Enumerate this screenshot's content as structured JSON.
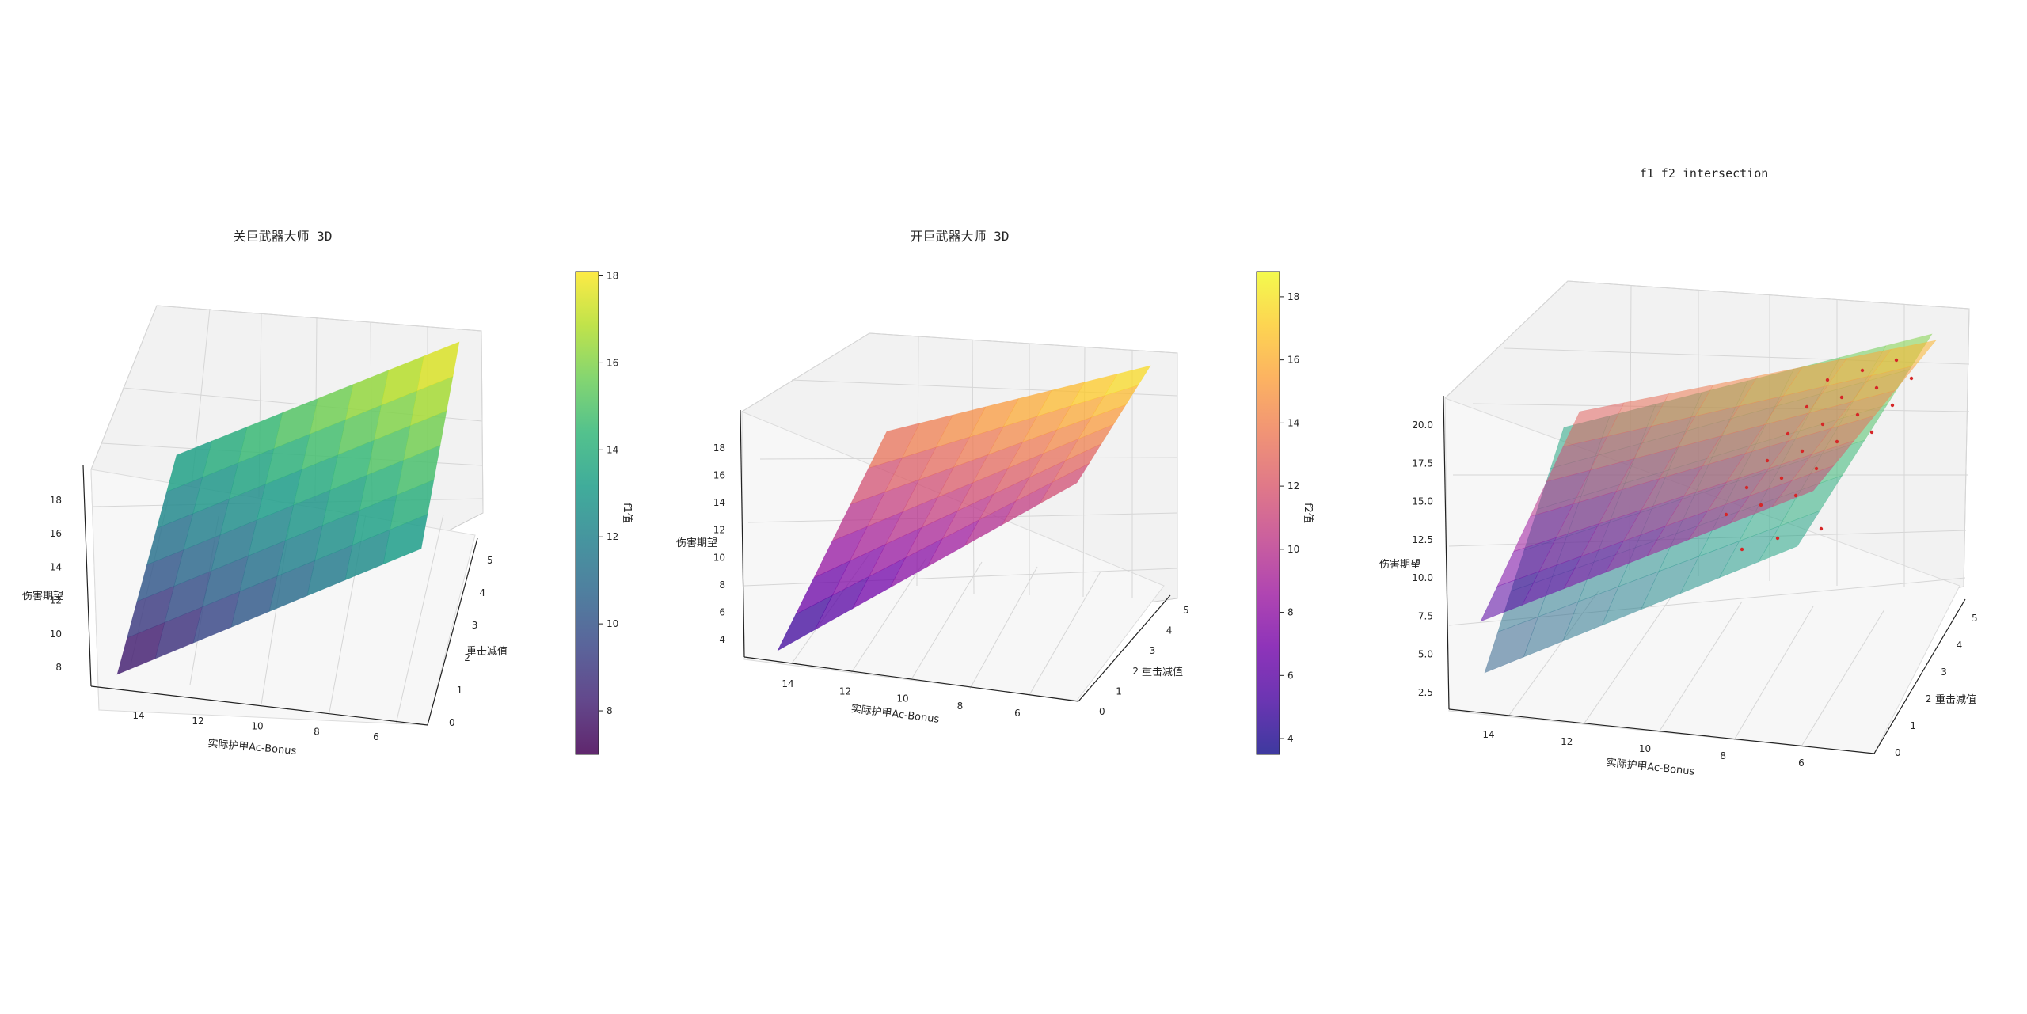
{
  "chart_data": [
    {
      "type": "surface",
      "title": "关巨武器大师 3D",
      "xlabel": "实际护甲Ac-Bonus",
      "ylabel": "重击减值",
      "zlabel": "伤害期望",
      "x_ticks": [
        "14",
        "12",
        "10",
        "8",
        "6"
      ],
      "y_ticks": [
        "0",
        "1",
        "2",
        "3",
        "4",
        "5"
      ],
      "z_ticks": [
        "8",
        "10",
        "12",
        "14",
        "16",
        "18"
      ],
      "xlim": [
        15,
        5
      ],
      "ylim": [
        0,
        5
      ],
      "zlim": [
        7,
        18
      ],
      "colormap": "viridis",
      "colorbar": {
        "label": "f1值",
        "ticks": [
          "8",
          "10",
          "12",
          "14",
          "16",
          "18"
        ],
        "range": [
          7,
          18.1
        ]
      },
      "corner_values": [
        {
          "x": 15,
          "y": 0,
          "z": 7.2
        },
        {
          "x": 5,
          "y": 0,
          "z": 13.0
        },
        {
          "x": 15,
          "y": 5,
          "z": 13.5
        },
        {
          "x": 5,
          "y": 5,
          "z": 18.1
        }
      ]
    },
    {
      "type": "surface",
      "title": "开巨武器大师 3D",
      "xlabel": "实际护甲Ac-Bonus",
      "ylabel": "重击减值",
      "zlabel": "伤害期望",
      "x_ticks": [
        "14",
        "12",
        "10",
        "8",
        "6"
      ],
      "y_ticks": [
        "0",
        "1",
        "2",
        "3",
        "4",
        "5"
      ],
      "z_ticks": [
        "4",
        "6",
        "8",
        "10",
        "12",
        "14",
        "16",
        "18"
      ],
      "xlim": [
        15,
        5
      ],
      "ylim": [
        0,
        5
      ],
      "zlim": [
        3.5,
        19
      ],
      "colormap": "plasma",
      "colorbar": {
        "label": "f2值",
        "ticks": [
          "4",
          "6",
          "8",
          "10",
          "12",
          "14",
          "16",
          "18"
        ],
        "range": [
          3.5,
          18.8
        ]
      },
      "corner_values": [
        {
          "x": 15,
          "y": 0,
          "z": 3.6
        },
        {
          "x": 5,
          "y": 0,
          "z": 11.5
        },
        {
          "x": 15,
          "y": 5,
          "z": 14.0
        },
        {
          "x": 5,
          "y": 5,
          "z": 18.8
        }
      ]
    },
    {
      "type": "surface",
      "title": "f1 f2 intersection",
      "xlabel": "实际护甲Ac-Bonus",
      "ylabel": "重击减值",
      "zlabel": "伤害期望",
      "x_ticks": [
        "14",
        "12",
        "10",
        "8",
        "6"
      ],
      "y_ticks": [
        "0",
        "1",
        "2",
        "3",
        "4",
        "5"
      ],
      "z_ticks": [
        "2.5",
        "5.0",
        "7.5",
        "10.0",
        "12.5",
        "15.0",
        "17.5",
        "20.0"
      ],
      "xlim": [
        15,
        5
      ],
      "ylim": [
        0,
        5
      ],
      "zlim": [
        2,
        21
      ],
      "series": [
        {
          "colormap": "viridis",
          "corner_values": [
            7.2,
            13.0,
            13.5,
            18.1
          ]
        },
        {
          "colormap": "plasma",
          "corner_values": [
            3.6,
            11.5,
            14.0,
            18.8
          ]
        }
      ],
      "intersection_points_color": "#d62728"
    }
  ]
}
